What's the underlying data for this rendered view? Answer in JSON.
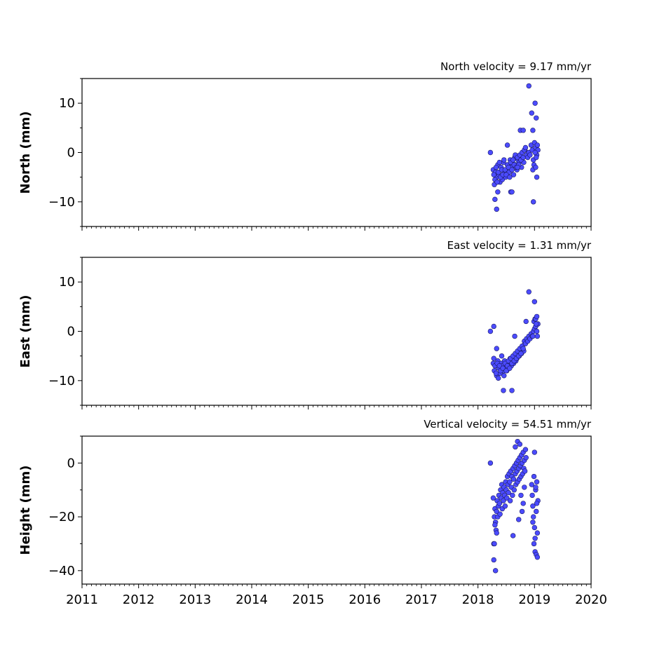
{
  "chart_data": {
    "type": "scatter",
    "x_unit": "decimal year",
    "xlim": [
      2011,
      2020
    ],
    "x_ticks": [
      2011,
      2012,
      2013,
      2014,
      2015,
      2016,
      2017,
      2018,
      2019,
      2020
    ],
    "x_tick_labels": [
      "2011",
      "2012",
      "2013",
      "2014",
      "2015",
      "2016",
      "2017",
      "2018",
      "2019",
      "2020"
    ],
    "marker_color": "#4b4bff",
    "marker_edge_color": "#1a1a66",
    "panels": [
      {
        "name": "north",
        "ylabel": "North (mm)",
        "velocity_title": "North velocity = 9.17 mm/yr",
        "ylim": [
          -15,
          15
        ],
        "y_ticks": [
          10,
          0,
          -10
        ],
        "y_tick_labels": [
          "10",
          "0",
          "−10"
        ],
        "series": [
          {
            "x": [
              2018.22,
              2018.27,
              2018.29,
              2018.31,
              2018.33,
              2018.35,
              2018.37,
              2018.39,
              2018.41,
              2018.43,
              2018.45,
              2018.47,
              2018.49,
              2018.51,
              2018.53,
              2018.55,
              2018.57,
              2018.59,
              2018.61,
              2018.63,
              2018.65,
              2018.67,
              2018.69,
              2018.71,
              2018.73,
              2018.75,
              2018.77,
              2018.79,
              2018.81,
              2018.83,
              2018.28,
              2018.3,
              2018.32,
              2018.34,
              2018.36,
              2018.38,
              2018.4,
              2018.42,
              2018.44,
              2018.46,
              2018.48,
              2018.5,
              2018.52,
              2018.54,
              2018.56,
              2018.58,
              2018.6,
              2018.62,
              2018.64,
              2018.66,
              2018.68,
              2018.7,
              2018.72,
              2018.74,
              2018.76,
              2018.78,
              2018.8,
              2018.82,
              2018.84,
              2018.86,
              2018.88,
              2018.9,
              2018.92,
              2018.94,
              2018.96,
              2018.98,
              2019.0,
              2019.02,
              2019.04,
              2019.06,
              2018.97,
              2018.99,
              2019.01,
              2019.03,
              2019.05,
              2019.02,
              2019.04,
              2018.3,
              2018.33,
              2018.35,
              2018.58,
              2018.6,
              2018.95,
              2018.97,
              2019.01,
              2018.98,
              2019.03,
              2018.9,
              2018.75,
              2018.8,
              2018.52,
              2018.7
            ],
            "y": [
              0.0,
              -3.5,
              -6.5,
              -4.0,
              -5.0,
              -2.5,
              -4.5,
              -6.0,
              -3.0,
              -5.5,
              -2.0,
              -4.0,
              -5.0,
              -3.5,
              -2.5,
              -4.0,
              -1.5,
              -3.0,
              -2.0,
              -4.5,
              -1.0,
              -2.5,
              -3.5,
              -1.5,
              -2.0,
              -0.5,
              -3.0,
              -1.0,
              -2.0,
              0.5,
              -4.5,
              -5.5,
              -3.0,
              -6.0,
              -4.0,
              -2.0,
              -5.0,
              -3.5,
              -4.5,
              -1.5,
              -3.5,
              -4.5,
              -2.5,
              -3.0,
              -5.0,
              -2.0,
              -3.5,
              -1.5,
              -2.5,
              -0.5,
              -3.0,
              -1.0,
              -2.5,
              -0.5,
              -1.5,
              0.0,
              -1.0,
              0.5,
              1.0,
              -0.5,
              -1.0,
              0.0,
              -0.5,
              1.5,
              0.5,
              -1.5,
              2.0,
              1.0,
              -0.5,
              0.5,
              -3.5,
              -2.5,
              0.0,
              -1.0,
              1.5,
              -3.0,
              -5.0,
              -9.5,
              -11.5,
              -8.0,
              -8.0,
              -8.0,
              8.0,
              4.5,
              10.0,
              -10.0,
              7.0,
              13.5,
              4.5,
              4.5,
              1.5,
              -3.0
            ]
          }
        ]
      },
      {
        "name": "east",
        "ylabel": "East (mm)",
        "velocity_title": "East velocity = 1.31 mm/yr",
        "ylim": [
          -15,
          15
        ],
        "y_ticks": [
          10,
          0,
          -10
        ],
        "y_tick_labels": [
          "10",
          "0",
          "−10"
        ],
        "series": [
          {
            "x": [
              2018.22,
              2018.27,
              2018.29,
              2018.31,
              2018.33,
              2018.35,
              2018.37,
              2018.39,
              2018.41,
              2018.43,
              2018.45,
              2018.47,
              2018.49,
              2018.51,
              2018.53,
              2018.55,
              2018.57,
              2018.59,
              2018.61,
              2018.63,
              2018.65,
              2018.67,
              2018.69,
              2018.71,
              2018.73,
              2018.75,
              2018.77,
              2018.79,
              2018.81,
              2018.83,
              2018.28,
              2018.3,
              2018.32,
              2018.34,
              2018.36,
              2018.38,
              2018.4,
              2018.42,
              2018.44,
              2018.46,
              2018.48,
              2018.5,
              2018.52,
              2018.54,
              2018.56,
              2018.58,
              2018.6,
              2018.62,
              2018.64,
              2018.66,
              2018.68,
              2018.7,
              2018.72,
              2018.74,
              2018.76,
              2018.78,
              2018.8,
              2018.82,
              2018.84,
              2018.86,
              2018.88,
              2018.9,
              2018.92,
              2018.94,
              2018.96,
              2018.98,
              2019.0,
              2019.02,
              2019.04,
              2019.06,
              2018.97,
              2018.99,
              2019.01,
              2019.03,
              2019.05,
              2019.02,
              2019.04,
              2018.28,
              2018.33,
              2018.45,
              2018.6,
              2018.9,
              2018.85,
              2019.0,
              2018.65
            ],
            "y": [
              0.0,
              -6.5,
              -8.0,
              -7.0,
              -9.0,
              -6.0,
              -7.5,
              -8.5,
              -6.5,
              -7.0,
              -8.0,
              -6.0,
              -7.5,
              -8.0,
              -6.5,
              -7.0,
              -5.5,
              -7.0,
              -6.0,
              -6.5,
              -5.0,
              -6.0,
              -5.5,
              -4.5,
              -5.0,
              -4.0,
              -4.5,
              -3.5,
              -4.0,
              -2.5,
              -5.5,
              -7.0,
              -8.5,
              -6.5,
              -9.5,
              -7.0,
              -8.0,
              -5.0,
              -7.5,
              -9.0,
              -6.5,
              -8.0,
              -7.0,
              -6.0,
              -7.5,
              -5.5,
              -6.5,
              -5.0,
              -6.0,
              -4.5,
              -5.5,
              -4.0,
              -5.0,
              -3.5,
              -4.5,
              -3.0,
              -3.5,
              -2.0,
              -2.5,
              -1.5,
              -2.0,
              -1.0,
              -1.5,
              -0.5,
              -1.0,
              0.0,
              0.5,
              1.0,
              0.0,
              1.5,
              -1.0,
              2.0,
              2.5,
              1.5,
              -1.0,
              2.5,
              3.0,
              1.0,
              -3.5,
              -12.0,
              -12.0,
              8.0,
              2.0,
              6.0,
              -1.0
            ]
          }
        ]
      },
      {
        "name": "height",
        "ylabel": "Height (mm)",
        "velocity_title": "Vertical velocity = 54.51 mm/yr",
        "ylim": [
          -45,
          10
        ],
        "y_ticks": [
          0,
          -20,
          -40
        ],
        "y_tick_labels": [
          "0",
          "−20",
          "−40"
        ],
        "series": [
          {
            "x": [
              2018.22,
              2018.27,
              2018.28,
              2018.29,
              2018.3,
              2018.31,
              2018.32,
              2018.33,
              2018.34,
              2018.35,
              2018.36,
              2018.37,
              2018.38,
              2018.39,
              2018.4,
              2018.41,
              2018.42,
              2018.43,
              2018.44,
              2018.45,
              2018.46,
              2018.47,
              2018.48,
              2018.49,
              2018.5,
              2018.51,
              2018.52,
              2018.53,
              2018.54,
              2018.55,
              2018.56,
              2018.57,
              2018.58,
              2018.59,
              2018.6,
              2018.61,
              2018.62,
              2018.63,
              2018.64,
              2018.65,
              2018.66,
              2018.67,
              2018.68,
              2018.69,
              2018.7,
              2018.71,
              2018.72,
              2018.73,
              2018.74,
              2018.75,
              2018.76,
              2018.77,
              2018.78,
              2018.79,
              2018.8,
              2018.81,
              2018.82,
              2018.83,
              2018.84,
              2018.85,
              2018.95,
              2018.96,
              2018.97,
              2018.98,
              2018.99,
              2019.0,
              2019.01,
              2019.02,
              2019.03,
              2019.04,
              2019.05,
              2019.06,
              2018.97,
              2018.99,
              2019.01,
              2019.03,
              2019.05,
              2018.28,
              2018.29,
              2018.31,
              2018.33,
              2018.3,
              2018.62,
              2018.66,
              2018.7,
              2018.74,
              2018.78,
              2018.8,
              2018.82,
              2018.72,
              2018.76,
              2019.0,
              2019.02,
              2019.04
            ],
            "y": [
              0.0,
              -13.0,
              -30.0,
              -20.0,
              -17.0,
              -22.0,
              -25.0,
              -18.0,
              -14.0,
              -20.0,
              -16.0,
              -12.0,
              -15.0,
              -19.0,
              -10.0,
              -13.0,
              -8.0,
              -17.0,
              -11.0,
              -14.0,
              -9.0,
              -12.0,
              -16.0,
              -7.0,
              -10.0,
              -13.0,
              -5.0,
              -8.0,
              -11.0,
              -4.0,
              -7.0,
              -14.0,
              -3.0,
              -9.0,
              -5.0,
              -12.0,
              -2.0,
              -6.0,
              -10.0,
              -1.0,
              -4.0,
              -8.0,
              0.0,
              -3.0,
              -7.0,
              1.0,
              -2.0,
              -6.0,
              2.0,
              -1.0,
              -5.0,
              3.0,
              0.0,
              -4.0,
              4.0,
              -2.0,
              1.0,
              -3.0,
              5.0,
              2.0,
              -8.0,
              -12.0,
              -16.0,
              -20.0,
              -5.0,
              -24.0,
              -28.0,
              -10.0,
              -18.0,
              -7.0,
              -26.0,
              -14.0,
              -22.0,
              -30.0,
              -33.0,
              -34.0,
              -35.0,
              -36.0,
              -30.0,
              -40.0,
              -26.0,
              -23.0,
              -27.0,
              6.0,
              8.0,
              7.0,
              -18.0,
              -15.0,
              -9.0,
              -21.0,
              -12.0,
              4.0,
              -9.0,
              -15.0
            ]
          }
        ]
      }
    ]
  }
}
